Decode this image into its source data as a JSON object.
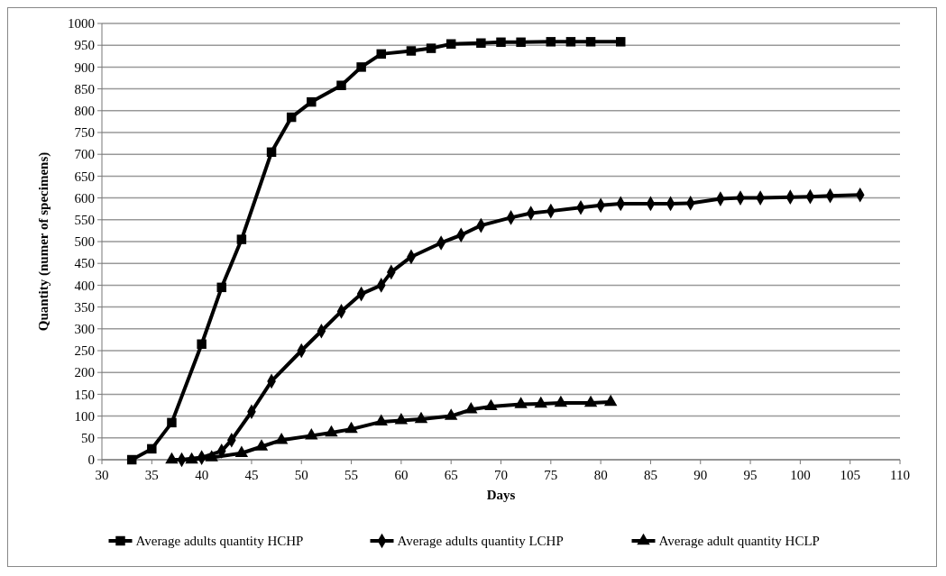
{
  "chart_data": {
    "type": "line",
    "xlabel": "Days",
    "ylabel": "Quantity (numer of specimens)",
    "xlim": [
      30,
      110
    ],
    "xticks": [
      30,
      35,
      40,
      45,
      50,
      55,
      60,
      65,
      70,
      75,
      80,
      85,
      90,
      95,
      100,
      105,
      110
    ],
    "ylim": [
      0,
      1000
    ],
    "yticks": [
      0,
      50,
      100,
      150,
      200,
      250,
      300,
      350,
      400,
      450,
      500,
      550,
      600,
      650,
      700,
      750,
      800,
      850,
      900,
      950,
      1000
    ],
    "grid": "y",
    "legend": "bottom",
    "line_style": "solid",
    "series": [
      {
        "name": "Average adults quantity HCHP",
        "color": "#000000",
        "marker": "square",
        "x": [
          33,
          35,
          37,
          40,
          42,
          44,
          47,
          49,
          51,
          54,
          56,
          58,
          61,
          63,
          65,
          68,
          70,
          72,
          75,
          77,
          79,
          82
        ],
        "values": [
          0,
          25,
          85,
          265,
          395,
          505,
          705,
          785,
          820,
          858,
          900,
          930,
          937,
          943,
          953,
          955,
          957,
          957,
          958,
          958,
          958,
          958
        ]
      },
      {
        "name": "Average adults quantity LCHP",
        "color": "#000000",
        "marker": "diamond",
        "x": [
          38,
          40,
          42,
          43,
          45,
          47,
          50,
          52,
          54,
          56,
          58,
          59,
          61,
          64,
          66,
          68,
          71,
          73,
          75,
          78,
          80,
          82,
          85,
          87,
          89,
          92,
          94,
          96,
          99,
          101,
          103,
          106
        ],
        "values": [
          0,
          5,
          20,
          45,
          110,
          180,
          250,
          295,
          340,
          380,
          400,
          430,
          465,
          497,
          515,
          537,
          555,
          565,
          570,
          578,
          583,
          587,
          587,
          587,
          588,
          598,
          600,
          600,
          602,
          603,
          605,
          607
        ]
      },
      {
        "name": "Average adult quantity HCLP",
        "color": "#000000",
        "marker": "triangle",
        "x": [
          37,
          39,
          41,
          44,
          46,
          48,
          51,
          53,
          55,
          58,
          60,
          62,
          65,
          67,
          69,
          72,
          74,
          76,
          79,
          81
        ],
        "values": [
          0,
          0,
          5,
          15,
          30,
          45,
          55,
          62,
          70,
          87,
          90,
          93,
          100,
          115,
          122,
          127,
          128,
          130,
          130,
          132
        ]
      }
    ]
  }
}
